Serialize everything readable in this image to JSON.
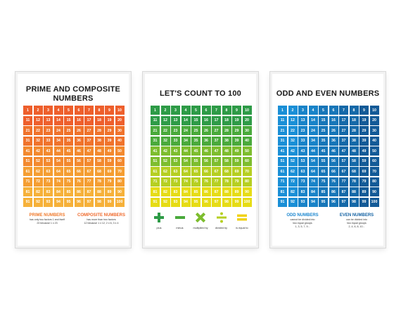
{
  "posters": [
    {
      "title_lines": [
        "PRIME AND COMPOSITE",
        "NUMBERS"
      ],
      "palette": [
        "#ee5f2c",
        "#f0732c",
        "#f3892e",
        "#f59e32",
        "#f6b13a"
      ],
      "legend": [
        {
          "heading": "PRIME NUMBERS",
          "color": "#ef7a2c",
          "lines": [
            "has only two factors 1 and itself",
            "23 because 1 x 23"
          ]
        },
        {
          "heading": "COMPOSITE NUMBERS",
          "color": "#ef6a2c",
          "lines": [
            "has more than two factors",
            "12 because 1 x 12, 2 x 6, 3 x 4"
          ]
        }
      ]
    },
    {
      "title_lines": [
        "LET'S COUNT TO 100"
      ],
      "palette": [
        "#2e9b47",
        "#4aaa3c",
        "#7dbd2e",
        "#b6cf22",
        "#e6dc15"
      ],
      "signs": [
        {
          "icon": "plus-icon",
          "label": "plus",
          "color": "#2e9b47"
        },
        {
          "icon": "minus-icon",
          "label": "minus",
          "color": "#4aaa3c"
        },
        {
          "icon": "multiply-icon",
          "label": "multiplied by",
          "color": "#7dbd2e"
        },
        {
          "icon": "divide-icon",
          "label": "divided by",
          "color": "#b6cf22"
        },
        {
          "icon": "equals-icon",
          "label": "is equal to",
          "color": "#f0d21a"
        }
      ]
    },
    {
      "title_lines": [
        "ODD AND EVEN NUMBERS"
      ],
      "palette": [
        "#1a8fd6",
        "#1983c8",
        "#1776b8",
        "#1569a8",
        "#135a97"
      ],
      "legend": [
        {
          "heading": "ODD NUMBERS",
          "color": "#1a86cf",
          "lines": [
            "cannot be divided into",
            "two equal groups",
            "1, 3, 5, 7, 9..."
          ]
        },
        {
          "heading": "EVEN NUMBERS",
          "color": "#1462a3",
          "lines": [
            "can be divided into",
            "two equal groups",
            "2, 4, 6, 8, 10..."
          ]
        }
      ]
    }
  ]
}
